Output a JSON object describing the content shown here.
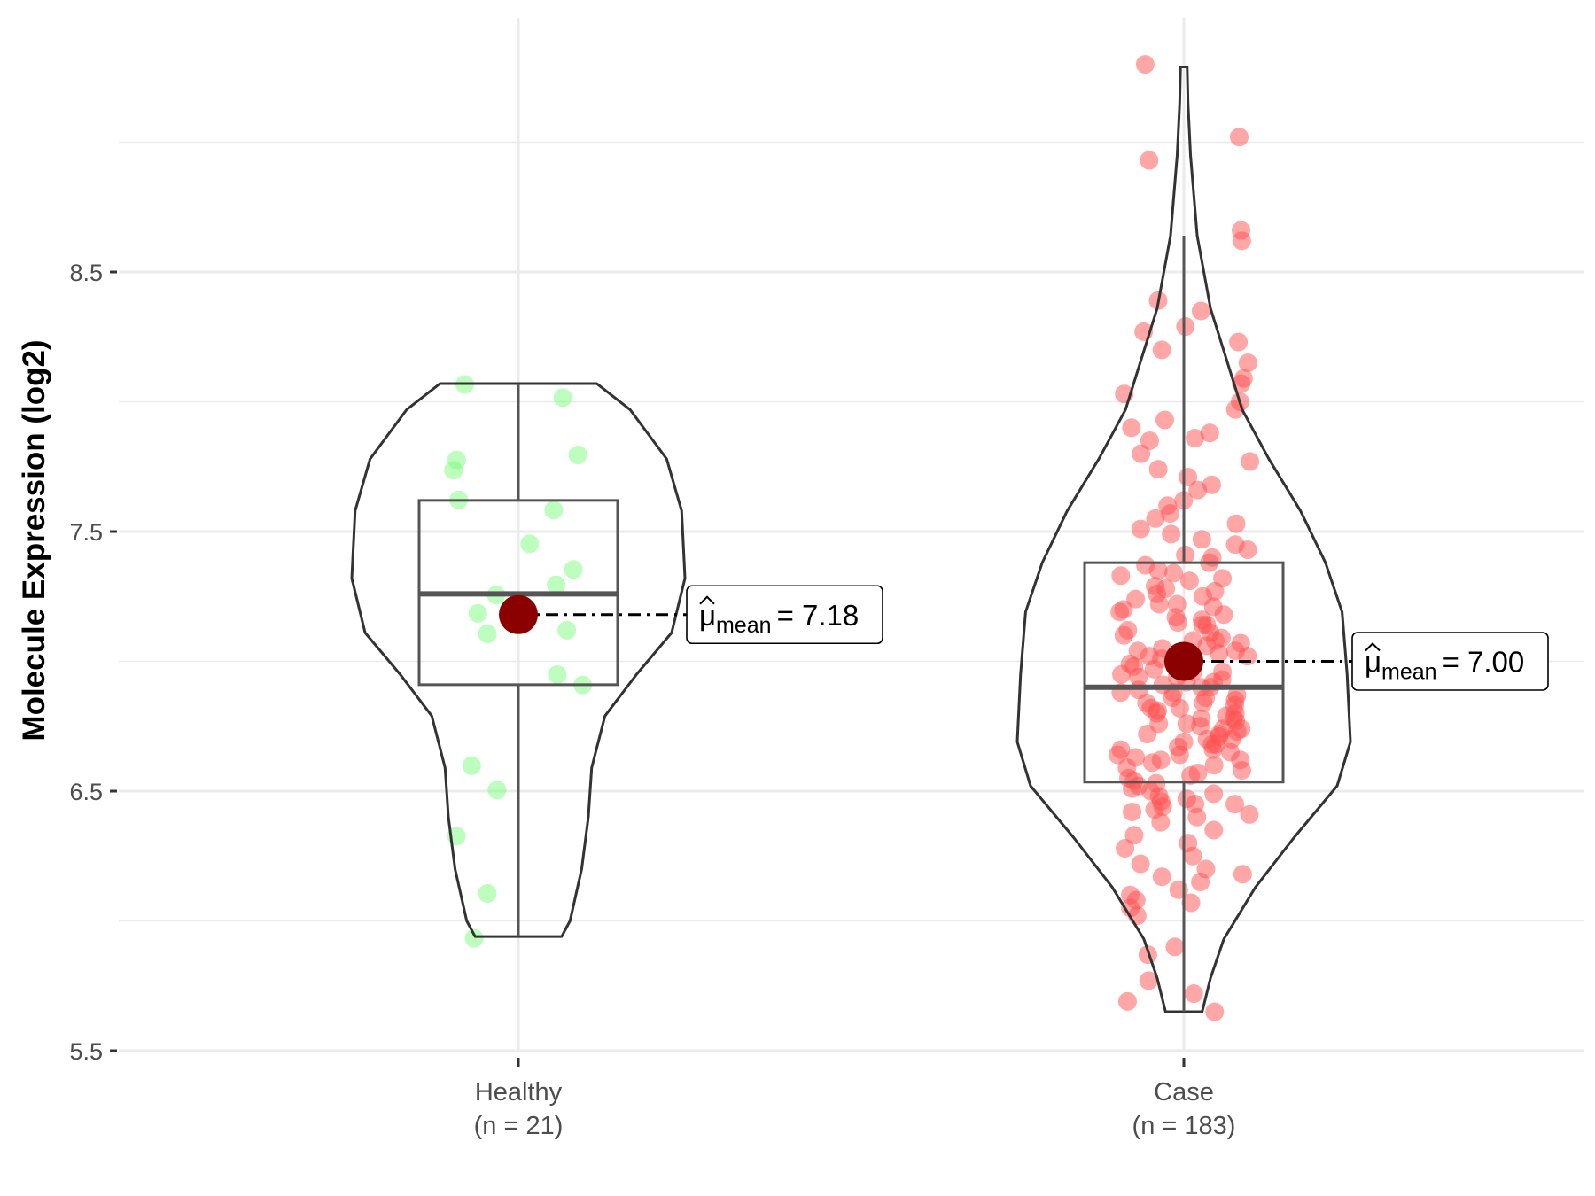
{
  "chart_data": {
    "type": "violin",
    "title": "",
    "xlabel": "",
    "ylabel": "Molecule Expression (log2)",
    "ylim": [
      5.5,
      9.35
    ],
    "yticks": [
      "5.5",
      "6.5",
      "7.5",
      "8.5"
    ],
    "ytick_values": [
      5.5,
      6.5,
      7.5,
      8.5
    ],
    "grid": true,
    "groups": [
      {
        "name": "Healthy",
        "n_label": "(n = 21)",
        "point_color": "#7CFC7C",
        "mean": 7.18,
        "mean_label": "= 7.18",
        "mean_symbol": "μ",
        "mean_sub": "mean",
        "box": {
          "q1": 6.91,
          "median": 7.26,
          "q3": 7.62,
          "whisker_low": 5.94,
          "whisker_high": 8.07
        },
        "violin": [
          [
            8.07,
            0.47
          ],
          [
            7.97,
            0.67
          ],
          [
            7.78,
            0.89
          ],
          [
            7.58,
            0.98
          ],
          [
            7.32,
            1.0
          ],
          [
            7.11,
            0.92
          ],
          [
            6.95,
            0.71
          ],
          [
            6.79,
            0.52
          ],
          [
            6.59,
            0.44
          ],
          [
            6.4,
            0.42
          ],
          [
            6.2,
            0.38
          ],
          [
            6.0,
            0.31
          ],
          [
            5.94,
            0.26
          ]
        ],
        "points": [
          8.067,
          8.016,
          7.795,
          7.776,
          7.736,
          7.622,
          7.583,
          7.453,
          7.354,
          7.295,
          7.256,
          7.185,
          7.106,
          6.949,
          6.909,
          6.598,
          6.504,
          6.327,
          6.106,
          5.933,
          7.12
        ]
      },
      {
        "name": "Case",
        "n_label": "(n = 183)",
        "point_color": "#FF4D4D",
        "mean": 7.0,
        "mean_label": "= 7.00",
        "mean_symbol": "μ",
        "mean_sub": "mean",
        "box": {
          "q1": 6.535,
          "median": 6.9,
          "q3": 7.38,
          "whisker_low": 5.65,
          "whisker_high": 8.64
        },
        "violin": [
          [
            9.29,
            0.02
          ],
          [
            9.15,
            0.025
          ],
          [
            8.95,
            0.04
          ],
          [
            8.64,
            0.08
          ],
          [
            8.36,
            0.16
          ],
          [
            7.97,
            0.35
          ],
          [
            7.78,
            0.51
          ],
          [
            7.58,
            0.7
          ],
          [
            7.38,
            0.85
          ],
          [
            7.19,
            0.95
          ],
          [
            6.95,
            0.98
          ],
          [
            6.69,
            1.0
          ],
          [
            6.52,
            0.92
          ],
          [
            6.32,
            0.66
          ],
          [
            6.13,
            0.43
          ],
          [
            5.93,
            0.24
          ],
          [
            5.78,
            0.16
          ],
          [
            5.65,
            0.11
          ]
        ],
        "points": [
          9.3,
          9.02,
          8.93,
          8.66,
          8.62,
          8.39,
          8.35,
          8.29,
          8.27,
          8.23,
          8.2,
          8.15,
          8.09,
          8.07,
          8.03,
          8.0,
          7.97,
          7.93,
          7.9,
          7.88,
          7.86,
          7.85,
          7.8,
          7.77,
          7.74,
          7.71,
          7.68,
          7.66,
          7.62,
          7.6,
          6.4,
          6.38,
          6.35,
          6.33,
          6.3,
          6.28,
          6.25,
          6.22,
          6.2,
          6.18,
          6.17,
          6.15,
          6.12,
          6.1,
          6.08,
          6.07,
          6.05,
          6.02,
          5.9,
          5.87,
          5.77,
          5.72,
          5.69,
          5.65,
          6.45,
          7.57,
          7.55,
          7.53,
          7.51,
          7.49,
          7.47,
          7.45,
          7.43,
          7.41,
          7.4,
          7.38,
          7.37,
          7.35,
          7.34,
          7.32,
          7.31,
          7.29,
          7.28,
          7.26,
          7.25,
          7.24,
          7.22,
          7.21,
          7.2,
          7.19,
          7.17,
          7.16,
          7.15,
          7.14,
          7.12,
          7.11,
          7.1,
          7.09,
          7.08,
          7.07,
          7.06,
          7.05,
          7.04,
          7.03,
          7.02,
          7.01,
          7.0,
          6.99,
          6.98,
          6.97,
          6.96,
          6.95,
          6.94,
          6.93,
          6.92,
          6.91,
          6.9,
          6.89,
          6.88,
          6.87,
          6.86,
          6.85,
          6.84,
          6.83,
          6.82,
          6.81,
          6.8,
          6.79,
          6.78,
          6.77,
          6.76,
          6.75,
          6.74,
          6.73,
          6.72,
          6.71,
          6.7,
          6.69,
          6.68,
          6.67,
          6.66,
          6.65,
          6.64,
          6.63,
          6.62,
          6.61,
          6.6,
          6.59,
          6.58,
          6.57,
          6.56,
          6.55,
          6.54,
          6.53,
          6.52,
          6.51,
          6.5,
          6.49,
          6.48,
          6.47,
          6.46,
          6.45,
          6.44,
          6.43,
          6.42,
          6.41,
          6.62,
          6.66,
          6.72,
          6.78,
          6.84,
          6.88,
          6.92,
          6.96,
          7.02,
          7.08,
          7.14,
          7.18,
          7.22,
          7.27,
          7.33,
          6.7,
          6.74,
          6.8,
          6.86,
          6.9,
          6.94,
          6.98,
          7.04,
          6.64,
          6.68,
          6.76,
          6.82
        ]
      }
    ],
    "mean_point_color": "#8B0000"
  }
}
